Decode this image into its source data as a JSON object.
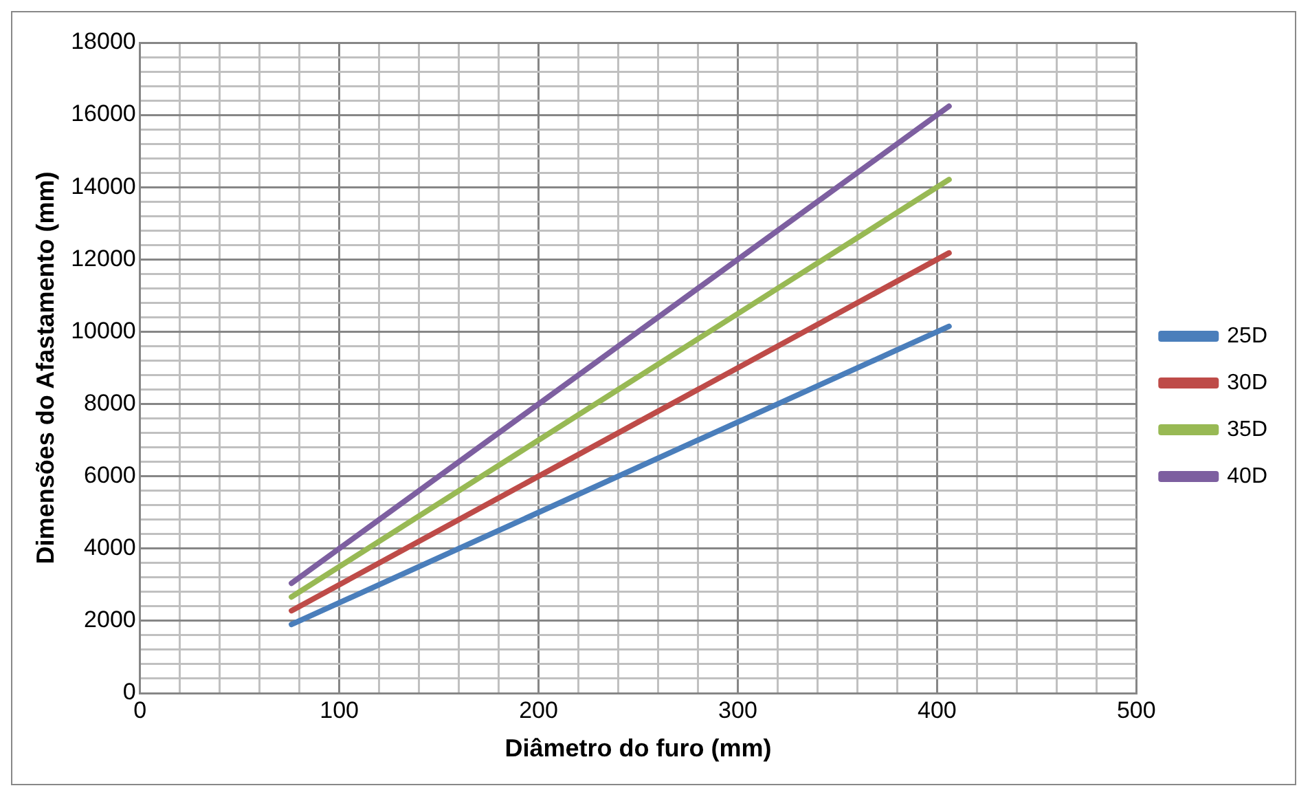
{
  "chart_data": {
    "type": "line",
    "xlabel": "Diâmetro do furo (mm)",
    "ylabel": "Dimensões do Afastamento (mm)",
    "x": [
      76,
      406
    ],
    "series": [
      {
        "name": "25D",
        "color": "#4a7ebb",
        "values": [
          1900,
          10150
        ]
      },
      {
        "name": "30D",
        "color": "#be4b48",
        "values": [
          2280,
          12180
        ]
      },
      {
        "name": "35D",
        "color": "#98b954",
        "values": [
          2660,
          14210
        ]
      },
      {
        "name": "40D",
        "color": "#7d5fa0",
        "values": [
          3040,
          16240
        ]
      }
    ],
    "xlim": [
      0,
      500
    ],
    "xticks": [
      0,
      {
        "value": 20,
        "label": null
      },
      {
        "value": 40,
        "label": null
      },
      {
        "value": 60,
        "label": null
      },
      {
        "value": 80,
        "label": null
      },
      100,
      {
        "value": 120,
        "label": null
      },
      {
        "value": 140,
        "label": null
      },
      {
        "value": 160,
        "label": null
      },
      {
        "value": 180,
        "label": null
      },
      200,
      {
        "value": 220,
        "label": null
      },
      {
        "value": 240,
        "label": null
      },
      {
        "value": 260,
        "label": null
      },
      {
        "value": 280,
        "label": null
      },
      300,
      {
        "value": 320,
        "label": null
      },
      {
        "value": 340,
        "label": null
      },
      {
        "value": 360,
        "label": null
      },
      {
        "value": 380,
        "label": null
      },
      400,
      {
        "value": 420,
        "label": null
      },
      {
        "value": 440,
        "label": null
      },
      {
        "value": 460,
        "label": null
      },
      {
        "value": 480,
        "label": null
      },
      500
    ],
    "ylim": [
      0,
      18000
    ],
    "yticks": [
      0,
      {
        "value": 400,
        "label": null
      },
      {
        "value": 800,
        "label": null
      },
      {
        "value": 1200,
        "label": null
      },
      {
        "value": 1600,
        "label": null
      },
      2000,
      {
        "value": 2400,
        "label": null
      },
      {
        "value": 2800,
        "label": null
      },
      {
        "value": 3200,
        "label": null
      },
      {
        "value": 3600,
        "label": null
      },
      4000,
      {
        "value": 4400,
        "label": null
      },
      {
        "value": 4800,
        "label": null
      },
      {
        "value": 5200,
        "label": null
      },
      {
        "value": 5600,
        "label": null
      },
      6000,
      {
        "value": 6400,
        "label": null
      },
      {
        "value": 6800,
        "label": null
      },
      {
        "value": 7200,
        "label": null
      },
      {
        "value": 7600,
        "label": null
      },
      8000,
      {
        "value": 8400,
        "label": null
      },
      {
        "value": 8800,
        "label": null
      },
      {
        "value": 9200,
        "label": null
      },
      {
        "value": 9600,
        "label": null
      },
      10000,
      {
        "value": 10400,
        "label": null
      },
      {
        "value": 10800,
        "label": null
      },
      {
        "value": 11200,
        "label": null
      },
      {
        "value": 11600,
        "label": null
      },
      12000,
      {
        "value": 12400,
        "label": null
      },
      {
        "value": 12800,
        "label": null
      },
      {
        "value": 13200,
        "label": null
      },
      {
        "value": 13600,
        "label": null
      },
      14000,
      {
        "value": 14400,
        "label": null
      },
      {
        "value": 14800,
        "label": null
      },
      {
        "value": 15200,
        "label": null
      },
      {
        "value": 15600,
        "label": null
      },
      16000,
      {
        "value": 16400,
        "label": null
      },
      {
        "value": 16800,
        "label": null
      },
      {
        "value": 17200,
        "label": null
      },
      {
        "value": 17600,
        "label": null
      },
      18000
    ],
    "grid": true,
    "legend": "right",
    "marker": "none",
    "line_style": "solid"
  }
}
